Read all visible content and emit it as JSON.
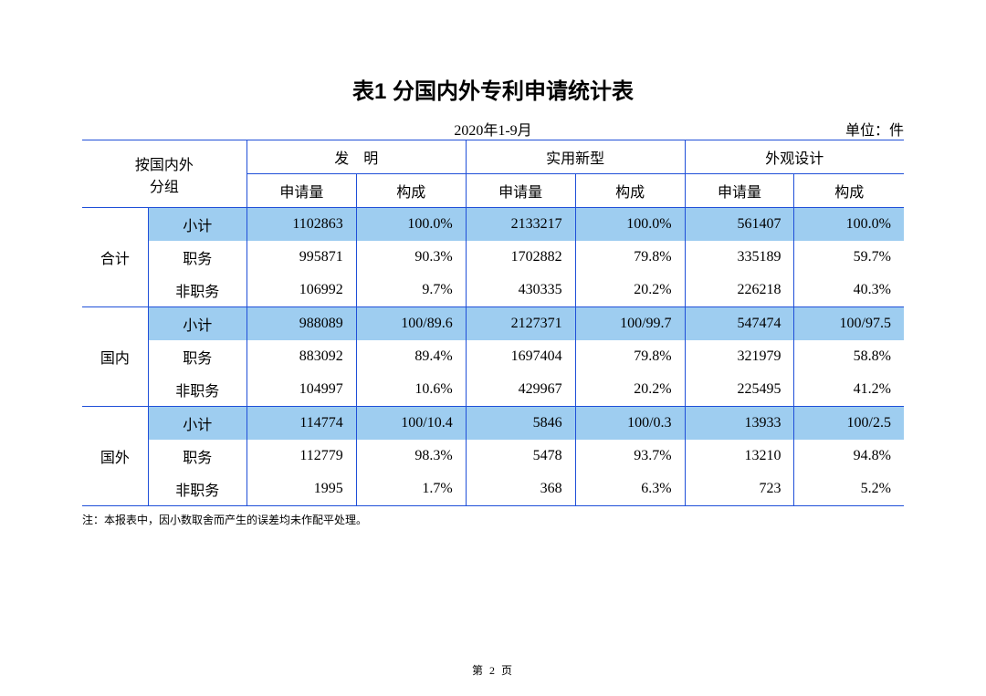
{
  "colors": {
    "line": "#1f4fd8",
    "highlight": "#9ecdf0",
    "text": "#000000",
    "background": "#ffffff"
  },
  "title": "表1  分国内外专利申请统计表",
  "period": "2020年1-9月",
  "unit_label": "单位：件",
  "header": {
    "group_label_line1": "按国内外",
    "group_label_line2": "分组",
    "categories": [
      "发　明",
      "实用新型",
      "外观设计"
    ],
    "subcols": [
      "申请量",
      "构成"
    ]
  },
  "row_groups": [
    {
      "label": "合计",
      "rows": [
        {
          "label": "小计",
          "highlight": true,
          "cells": [
            "1102863",
            "100.0%",
            "2133217",
            "100.0%",
            "561407",
            "100.0%"
          ]
        },
        {
          "label": "职务",
          "highlight": false,
          "cells": [
            "995871",
            "90.3%",
            "1702882",
            "79.8%",
            "335189",
            "59.7%"
          ]
        },
        {
          "label": "非职务",
          "highlight": false,
          "cells": [
            "106992",
            "9.7%",
            "430335",
            "20.2%",
            "226218",
            "40.3%"
          ]
        }
      ]
    },
    {
      "label": "国内",
      "rows": [
        {
          "label": "小计",
          "highlight": true,
          "cells": [
            "988089",
            "100/89.6",
            "2127371",
            "100/99.7",
            "547474",
            "100/97.5"
          ]
        },
        {
          "label": "职务",
          "highlight": false,
          "cells": [
            "883092",
            "89.4%",
            "1697404",
            "79.8%",
            "321979",
            "58.8%"
          ]
        },
        {
          "label": "非职务",
          "highlight": false,
          "cells": [
            "104997",
            "10.6%",
            "429967",
            "20.2%",
            "225495",
            "41.2%"
          ]
        }
      ]
    },
    {
      "label": "国外",
      "rows": [
        {
          "label": "小计",
          "highlight": true,
          "cells": [
            "114774",
            "100/10.4",
            "5846",
            "100/0.3",
            "13933",
            "100/2.5"
          ]
        },
        {
          "label": "职务",
          "highlight": false,
          "cells": [
            "112779",
            "98.3%",
            "5478",
            "93.7%",
            "13210",
            "94.8%"
          ]
        },
        {
          "label": "非职务",
          "highlight": false,
          "cells": [
            "1995",
            "1.7%",
            "368",
            "6.3%",
            "723",
            "5.2%"
          ]
        }
      ]
    }
  ],
  "footnote": "注：本报表中，因小数取舍而产生的误差均未作配平处理。",
  "page_number": "第  2  页",
  "col_widths_pct": [
    8,
    12,
    13.3,
    13.3,
    13.3,
    13.3,
    13.3,
    13.3
  ]
}
